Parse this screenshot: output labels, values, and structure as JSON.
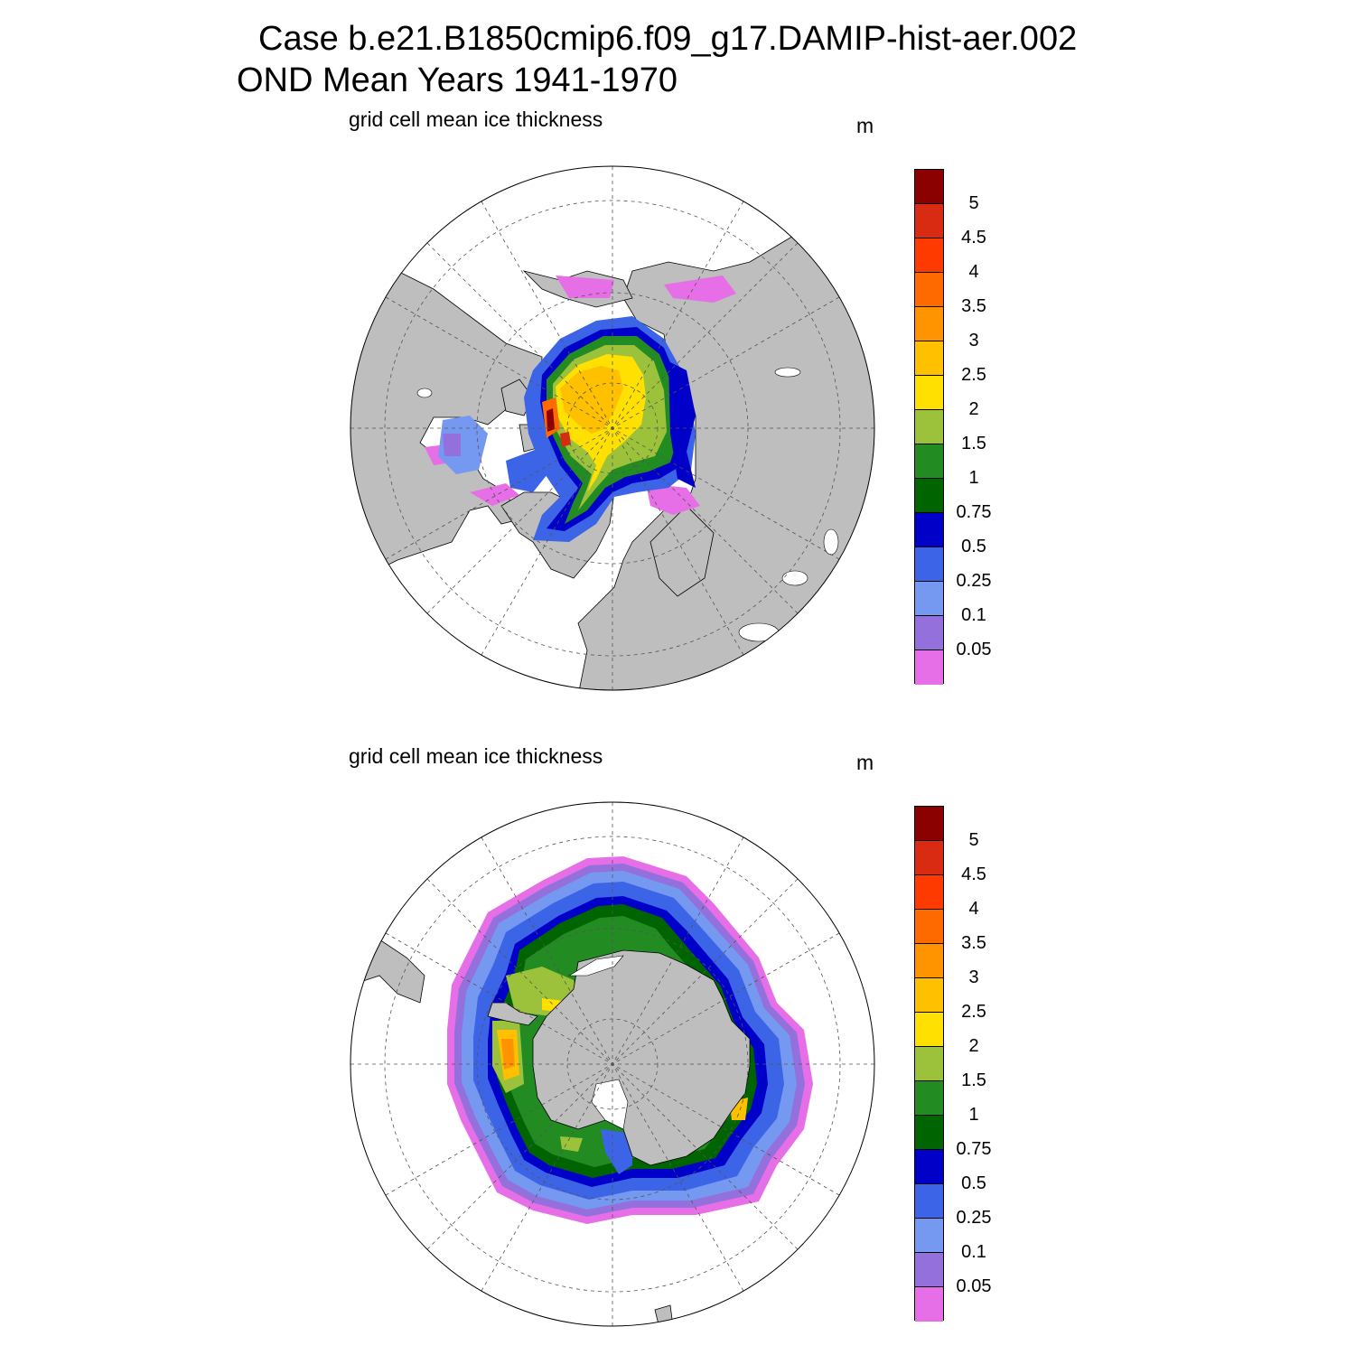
{
  "title": {
    "line1": "Case b.e21.B1850cmip6.f09_g17.DAMIP-hist-aer.002",
    "line2": "OND Mean   Years 1941-1970"
  },
  "panels": [
    {
      "id": "north",
      "variable": "grid cell mean ice thickness",
      "units": "m"
    },
    {
      "id": "south",
      "variable": "grid cell mean ice thickness",
      "units": "m"
    }
  ],
  "colorbar": {
    "labels": [
      "5",
      "4.5",
      "4",
      "3.5",
      "3",
      "2.5",
      "2",
      "1.5",
      "1",
      "0.75",
      "0.5",
      "0.25",
      "0.1",
      "0.05"
    ],
    "colors": [
      "#8b0000",
      "#d92b12",
      "#ff3a00",
      "#ff6a00",
      "#ff9400",
      "#ffc000",
      "#ffe000",
      "#9bc23a",
      "#228b22",
      "#006400",
      "#0000c8",
      "#3c64e6",
      "#7598f0",
      "#9370db",
      "#e66ee6"
    ]
  },
  "land_color": "#bebebe"
}
